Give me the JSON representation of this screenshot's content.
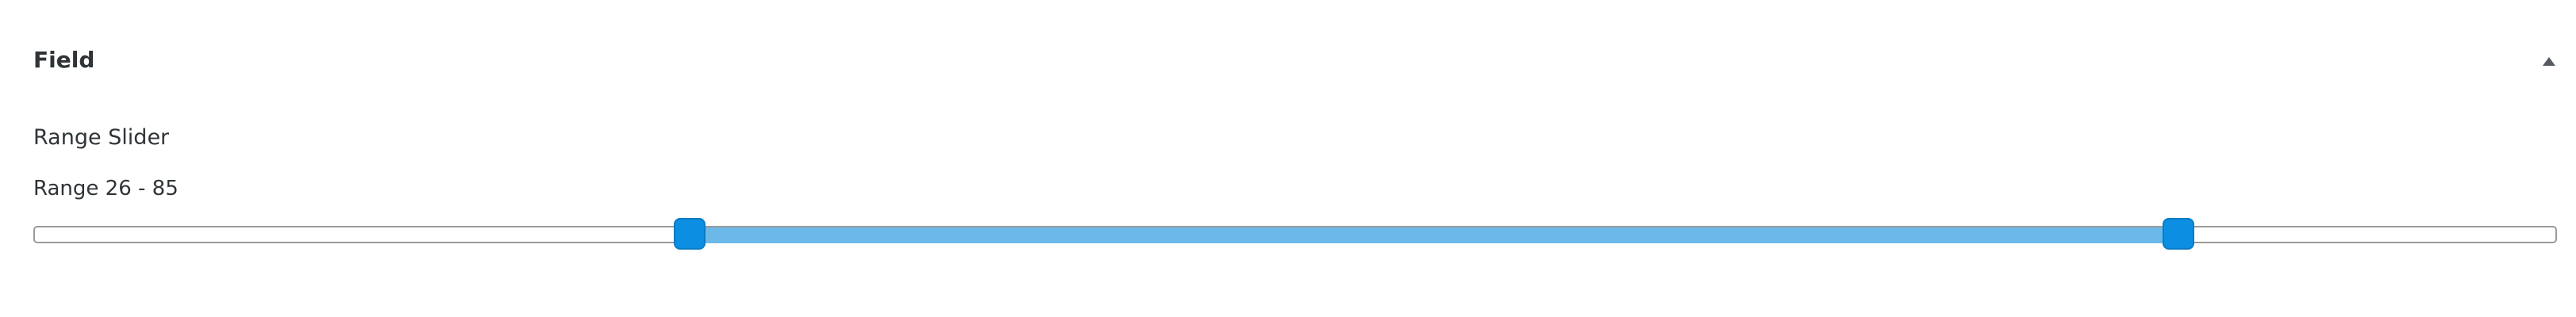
{
  "panel": {
    "title": "Field",
    "toggle_icon": "caret-up-icon"
  },
  "field": {
    "label": "Range Slider",
    "readout": "Range 26 - 85"
  },
  "slider": {
    "min": 0,
    "max": 100,
    "low": 26,
    "high": 85,
    "track_color": "#ffffff",
    "fill_color": "#6bb9e8",
    "handle_color": "#0c8fe3"
  }
}
